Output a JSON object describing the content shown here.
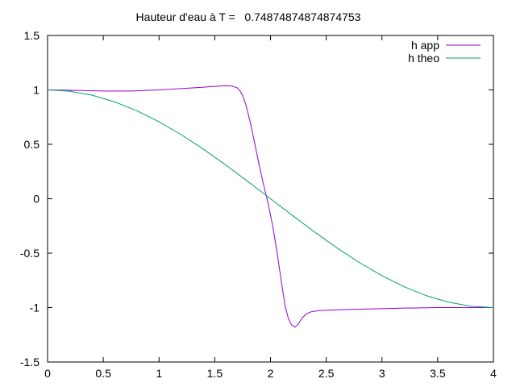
{
  "chart_data": {
    "type": "line",
    "title": "Hauteur d'eau à T =   0.74874874874874753",
    "xlabel": "",
    "ylabel": "",
    "xlim": [
      0,
      4
    ],
    "ylim": [
      -1.5,
      1.5
    ],
    "x_ticks": [
      0,
      0.5,
      1,
      1.5,
      2,
      2.5,
      3,
      3.5,
      4
    ],
    "x_tick_labels": [
      "0",
      "0.5",
      "1",
      "1.5",
      "2",
      "2.5",
      "3",
      "3.5",
      "4"
    ],
    "y_ticks": [
      -1.5,
      -1,
      -0.5,
      0,
      0.5,
      1,
      1.5
    ],
    "y_tick_labels": [
      "-1.5",
      "-1",
      "-0.5",
      "0",
      "0.5",
      "1",
      "1.5"
    ],
    "grid": false,
    "legend_position": "top-right",
    "series": [
      {
        "name": "h app",
        "color": "#9400d3",
        "x": [
          0,
          0.25,
          0.5,
          0.75,
          1.0,
          1.2,
          1.4,
          1.5,
          1.55,
          1.6,
          1.65,
          1.7,
          1.72,
          1.74,
          1.76,
          1.78,
          1.8,
          1.83,
          1.86,
          1.9,
          1.94,
          1.98,
          2.02,
          2.06,
          2.1,
          2.13,
          2.16,
          2.19,
          2.22,
          2.25,
          2.28,
          2.32,
          2.36,
          2.42,
          2.5,
          2.6,
          2.8,
          3.0,
          3.2,
          3.5,
          3.8,
          4.0
        ],
        "values": [
          1.0,
          0.995,
          0.99,
          0.99,
          1.0,
          1.012,
          1.025,
          1.032,
          1.036,
          1.038,
          1.036,
          1.02,
          1.0,
          0.97,
          0.92,
          0.86,
          0.78,
          0.65,
          0.5,
          0.3,
          0.12,
          -0.05,
          -0.25,
          -0.5,
          -0.78,
          -0.98,
          -1.1,
          -1.16,
          -1.18,
          -1.15,
          -1.1,
          -1.06,
          -1.04,
          -1.03,
          -1.025,
          -1.02,
          -1.015,
          -1.01,
          -1.005,
          -1.0,
          -1.0,
          -1.0
        ]
      },
      {
        "name": "h theo",
        "color": "#009e73",
        "x": [
          0,
          0.2,
          0.4,
          0.6,
          0.8,
          1.0,
          1.2,
          1.4,
          1.6,
          1.8,
          2.0,
          2.2,
          2.4,
          2.6,
          2.8,
          3.0,
          3.2,
          3.4,
          3.6,
          3.8,
          4.0
        ],
        "values": [
          1.0,
          0.988,
          0.951,
          0.891,
          0.809,
          0.707,
          0.588,
          0.454,
          0.309,
          0.156,
          0.0,
          -0.156,
          -0.309,
          -0.454,
          -0.588,
          -0.707,
          -0.809,
          -0.891,
          -0.951,
          -0.988,
          -1.0
        ]
      }
    ]
  }
}
